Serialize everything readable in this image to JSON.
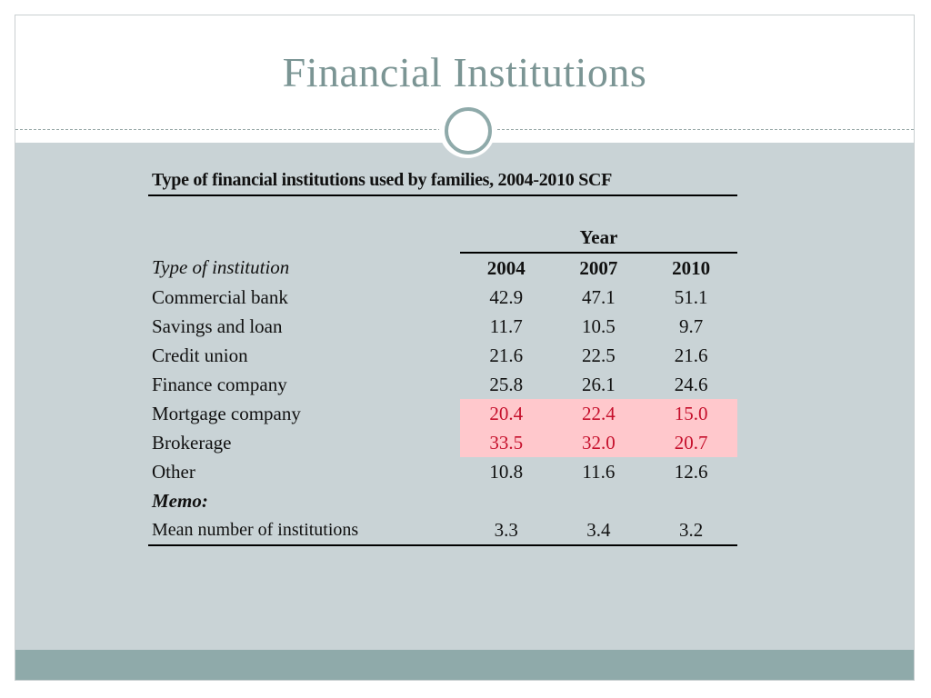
{
  "slide": {
    "title": "Financial Institutions"
  },
  "table": {
    "caption": "Type of financial institutions used by families, 2004-2010 SCF",
    "group_header": "Year",
    "row_header_label": "Type of institution",
    "columns": [
      "2004",
      "2007",
      "2010"
    ],
    "rows": [
      {
        "label": "Commercial bank",
        "values": [
          "42.9",
          "47.1",
          "51.1"
        ],
        "highlight": false
      },
      {
        "label": "Savings and loan",
        "values": [
          "11.7",
          "10.5",
          "9.7"
        ],
        "highlight": false
      },
      {
        "label": "Credit union",
        "values": [
          "21.6",
          "22.5",
          "21.6"
        ],
        "highlight": false
      },
      {
        "label": "Finance company",
        "values": [
          "25.8",
          "26.1",
          "24.6"
        ],
        "highlight": false
      },
      {
        "label": "Mortgage company",
        "values": [
          "20.4",
          "22.4",
          "15.0"
        ],
        "highlight": true
      },
      {
        "label": "Brokerage",
        "values": [
          "33.5",
          "32.0",
          "20.7"
        ],
        "highlight": true
      },
      {
        "label": "Other",
        "values": [
          "10.8",
          "11.6",
          "12.6"
        ],
        "highlight": false
      }
    ],
    "memo_label": "Memo:",
    "memo_row": {
      "label": "Mean number of institutions",
      "values": [
        "3.3",
        "3.4",
        "3.2"
      ]
    }
  },
  "colors": {
    "title": "#7b9594",
    "content_background": "#c9d3d6",
    "footer_bar": "#8faaaa",
    "highlight_fill": "#ffc8cc",
    "highlight_text": "#c6102c"
  }
}
